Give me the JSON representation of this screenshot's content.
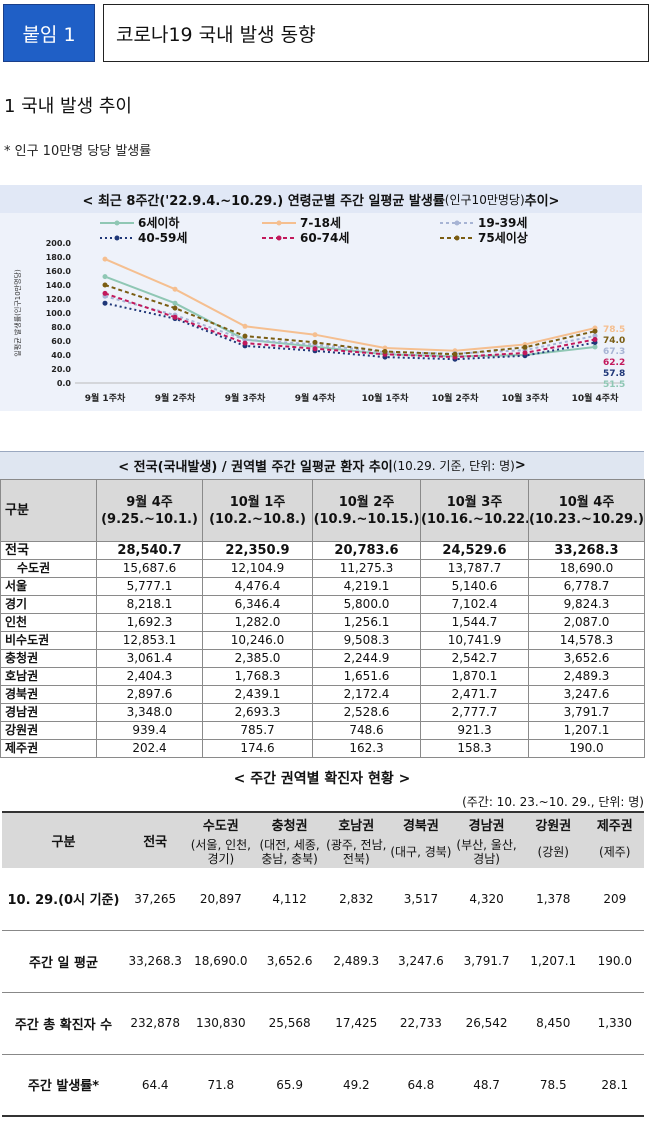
{
  "header": {
    "badge": "붙임 1",
    "title": "코로나19 국내 발생 동향"
  },
  "section": {
    "title": "1  국내 발생 추이",
    "note": "* 인구 10만명 당당 발생률"
  },
  "chart_data": {
    "type": "line",
    "title_main": "< 최근 8주간('22.9.4.~10.29.) 연령군별 주간 일평균 발생률",
    "title_sub": "(인구10만명당)",
    "title_end": " 추이>",
    "ylabel": "일평균 발생률(인구10만명당)",
    "ylim": [
      0,
      200
    ],
    "yticks": [
      "0.0",
      "20.0",
      "40.0",
      "60.0",
      "80.0",
      "100.0",
      "120.0",
      "140.0",
      "160.0",
      "180.0",
      "200.0"
    ],
    "categories": [
      "9월 1주차",
      "9월 2주차",
      "9월 3주차",
      "9월 4주차",
      "10월 1주차",
      "10월 2주차",
      "10월 3주차",
      "10월 4주차"
    ],
    "series": [
      {
        "name": "6세이하",
        "color": "#8fc7b4",
        "dash": "",
        "values": [
          152,
          114,
          62,
          52,
          41,
          38,
          40,
          51.5
        ],
        "end_label": "51.5"
      },
      {
        "name": "7-18세",
        "color": "#f5bf90",
        "dash": "",
        "values": [
          177,
          134,
          81,
          69,
          50,
          46,
          55,
          78.5
        ],
        "end_label": "78.5"
      },
      {
        "name": "19-39세",
        "color": "#a7b4d4",
        "dash": "3,3",
        "values": [
          124,
          97,
          62,
          55,
          44,
          42,
          47,
          67.3
        ],
        "end_label": "67.3"
      },
      {
        "name": "40-59세",
        "color": "#1f3778",
        "dash": "2,3",
        "values": [
          114,
          92,
          53,
          46,
          37,
          34,
          39,
          57.8
        ],
        "end_label": "57.8"
      },
      {
        "name": "60-74세",
        "color": "#c2185b",
        "dash": "4,3",
        "values": [
          128,
          94,
          57,
          49,
          41,
          37,
          43,
          62.2
        ],
        "end_label": "62.2"
      },
      {
        "name": "75세이상",
        "color": "#7a5d12",
        "dash": "4,3",
        "values": [
          140,
          107,
          67,
          58,
          45,
          41,
          51,
          74.0
        ],
        "end_label": "74.0"
      }
    ]
  },
  "weekly_table": {
    "caption_main": "< 전국(국내발생) / 권역별 주간 일평균 환자 추이",
    "caption_sub": "(10.29. 기준, 단위: 명)",
    "caption_end": " >",
    "headers": [
      "구분",
      "9월 4주 (9.25.~10.1.)",
      "10월 1주 (10.2.~10.8.)",
      "10월 2주 (10.9.~10.15.)",
      "10월 3주 (10.16.~10.22.)",
      "10월 4주 (10.23.~10.29.)"
    ],
    "rows": [
      {
        "label": "전국",
        "values": [
          "28,540.7",
          "22,350.9",
          "20,783.6",
          "24,529.6",
          "33,268.3"
        ]
      },
      {
        "label": "수도권",
        "values": [
          "15,687.6",
          "12,104.9",
          "11,275.3",
          "13,787.7",
          "18,690.0"
        ]
      },
      {
        "label": "서울",
        "values": [
          "5,777.1",
          "4,476.4",
          "4,219.1",
          "5,140.6",
          "6,778.7"
        ]
      },
      {
        "label": "경기",
        "values": [
          "8,218.1",
          "6,346.4",
          "5,800.0",
          "7,102.4",
          "9,824.3"
        ]
      },
      {
        "label": "인천",
        "values": [
          "1,692.3",
          "1,282.0",
          "1,256.1",
          "1,544.7",
          "2,087.0"
        ]
      },
      {
        "label": "비수도권",
        "values": [
          "12,853.1",
          "10,246.0",
          "9,508.3",
          "10,741.9",
          "14,578.3"
        ]
      },
      {
        "label": "충청권",
        "values": [
          "3,061.4",
          "2,385.0",
          "2,244.9",
          "2,542.7",
          "3,652.6"
        ]
      },
      {
        "label": "호남권",
        "values": [
          "2,404.3",
          "1,768.3",
          "1,651.6",
          "1,870.1",
          "2,489.3"
        ]
      },
      {
        "label": "경북권",
        "values": [
          "2,897.6",
          "2,439.1",
          "2,172.4",
          "2,471.7",
          "3,247.6"
        ]
      },
      {
        "label": "경남권",
        "values": [
          "3,348.0",
          "2,693.3",
          "2,528.6",
          "2,777.7",
          "3,791.7"
        ]
      },
      {
        "label": "강원권",
        "values": [
          "939.4",
          "785.7",
          "748.6",
          "921.3",
          "1,207.1"
        ]
      },
      {
        "label": "제주권",
        "values": [
          "202.4",
          "174.6",
          "162.3",
          "158.3",
          "190.0"
        ]
      }
    ]
  },
  "regional_table": {
    "title": "< 주간 권역별 확진자 현황 >",
    "meta": "(주간: 10. 23.~10. 29., 단위: 명)",
    "col_label": "구분",
    "col_total": "전국",
    "regions": [
      {
        "name": "수도권",
        "sub": "(서울, 인천, 경기)"
      },
      {
        "name": "충청권",
        "sub": "(대전, 세종, 충남, 충북)"
      },
      {
        "name": "호남권",
        "sub": "(광주, 전남, 전북)"
      },
      {
        "name": "경북권",
        "sub": "(대구, 경북)"
      },
      {
        "name": "경남권",
        "sub": "(부산, 울산, 경남)"
      },
      {
        "name": "강원권",
        "sub": "(강원)"
      },
      {
        "name": "제주권",
        "sub": "(제주)"
      }
    ],
    "rows": [
      {
        "label": "10. 29.(0시 기준)",
        "values": [
          "37,265",
          "20,897",
          "4,112",
          "2,832",
          "3,517",
          "4,320",
          "1,378",
          "209"
        ]
      },
      {
        "label": "주간 일 평균",
        "values": [
          "33,268.3",
          "18,690.0",
          "3,652.6",
          "2,489.3",
          "3,247.6",
          "3,791.7",
          "1,207.1",
          "190.0"
        ]
      },
      {
        "label": "주간 총 확진자 수",
        "values": [
          "232,878",
          "130,830",
          "25,568",
          "17,425",
          "22,733",
          "26,542",
          "8,450",
          "1,330"
        ]
      },
      {
        "label": "주간 발생률*",
        "values": [
          "64.4",
          "71.8",
          "65.9",
          "49.2",
          "64.8",
          "48.7",
          "78.5",
          "28.1"
        ]
      }
    ]
  }
}
